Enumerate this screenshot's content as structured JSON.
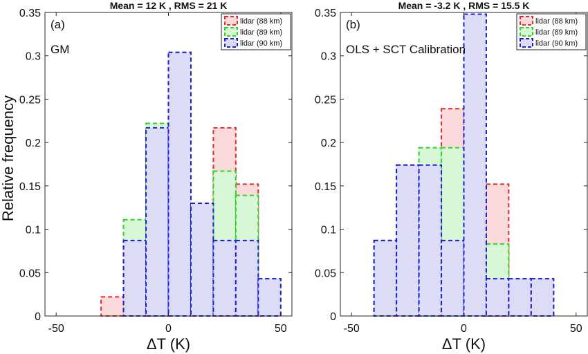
{
  "figure": {
    "shared_ylabel": "Relative frequency"
  },
  "chart_data": [
    {
      "type": "bar",
      "panel_label": "(a)",
      "title": "Mean = 12 K , RMS = 21 K",
      "annotation": "GM",
      "xlabel": "ΔT (K)",
      "ylabel": "Relative frequency",
      "xlim": [
        -55,
        55
      ],
      "ylim": [
        0,
        0.35
      ],
      "xticks": [
        "-50",
        "0",
        "50"
      ],
      "xtick_values": [
        -50,
        0,
        50
      ],
      "yticks": [
        "0",
        "0.05",
        "0.1",
        "0.15",
        "0.2",
        "0.25",
        "0.3",
        "0.35"
      ],
      "ytick_values": [
        0,
        0.05,
        0.1,
        0.15,
        0.2,
        0.25,
        0.3,
        0.35
      ],
      "legend_position": "top-right",
      "bin_edges": [
        -50,
        -40,
        -30,
        -20,
        -10,
        0,
        10,
        20,
        30,
        40,
        50
      ],
      "series": [
        {
          "name": "lidar (88 km)",
          "color": "#e8282b",
          "fill": "#fadada",
          "values": [
            0,
            0,
            0.022,
            0.087,
            0.217,
            0.304,
            0.13,
            0.217,
            0.152,
            0.043
          ]
        },
        {
          "name": "lidar (89 km)",
          "color": "#27d627",
          "fill": "#d7f7d7",
          "values": [
            0,
            0,
            0,
            0.111,
            0.222,
            0.304,
            0.13,
            0.167,
            0.139,
            0.043
          ]
        },
        {
          "name": "lidar (90 km)",
          "color": "#1e1ed2",
          "fill": "#dcdcf6",
          "values": [
            0,
            0,
            0,
            0.087,
            0.217,
            0.304,
            0.13,
            0.087,
            0.087,
            0.043
          ]
        }
      ]
    },
    {
      "type": "bar",
      "panel_label": "(b)",
      "title": "Mean = -3.2 K , RMS = 15.5 K",
      "annotation": "OLS + SCT Calibration",
      "xlabel": "ΔT (K)",
      "ylabel": "",
      "xlim": [
        -55,
        55
      ],
      "ylim": [
        0,
        0.35
      ],
      "xticks": [
        "-50",
        "0",
        "50"
      ],
      "xtick_values": [
        -50,
        0,
        50
      ],
      "yticks": [
        "0",
        "0.05",
        "0.1",
        "0.15",
        "0.2",
        "0.25",
        "0.3",
        "0.35"
      ],
      "ytick_values": [
        0,
        0.05,
        0.1,
        0.15,
        0.2,
        0.25,
        0.3,
        0.35
      ],
      "legend_position": "top-right",
      "bin_edges": [
        -50,
        -40,
        -30,
        -20,
        -10,
        0,
        10,
        20,
        30,
        40,
        50
      ],
      "series": [
        {
          "name": "lidar (88 km)",
          "color": "#e8282b",
          "fill": "#fadada",
          "values": [
            0,
            0.087,
            0.174,
            0.174,
            0.239,
            0.348,
            0.152,
            0.043,
            0.043,
            0
          ]
        },
        {
          "name": "lidar (89 km)",
          "color": "#27d627",
          "fill": "#d7f7d7",
          "values": [
            0,
            0.087,
            0.174,
            0.194,
            0.194,
            0.348,
            0.083,
            0.043,
            0.043,
            0
          ]
        },
        {
          "name": "lidar (90 km)",
          "color": "#1e1ed2",
          "fill": "#dcdcf6",
          "values": [
            0,
            0.087,
            0.174,
            0.174,
            0.087,
            0.348,
            0.043,
            0.043,
            0.043,
            0
          ]
        }
      ]
    }
  ]
}
